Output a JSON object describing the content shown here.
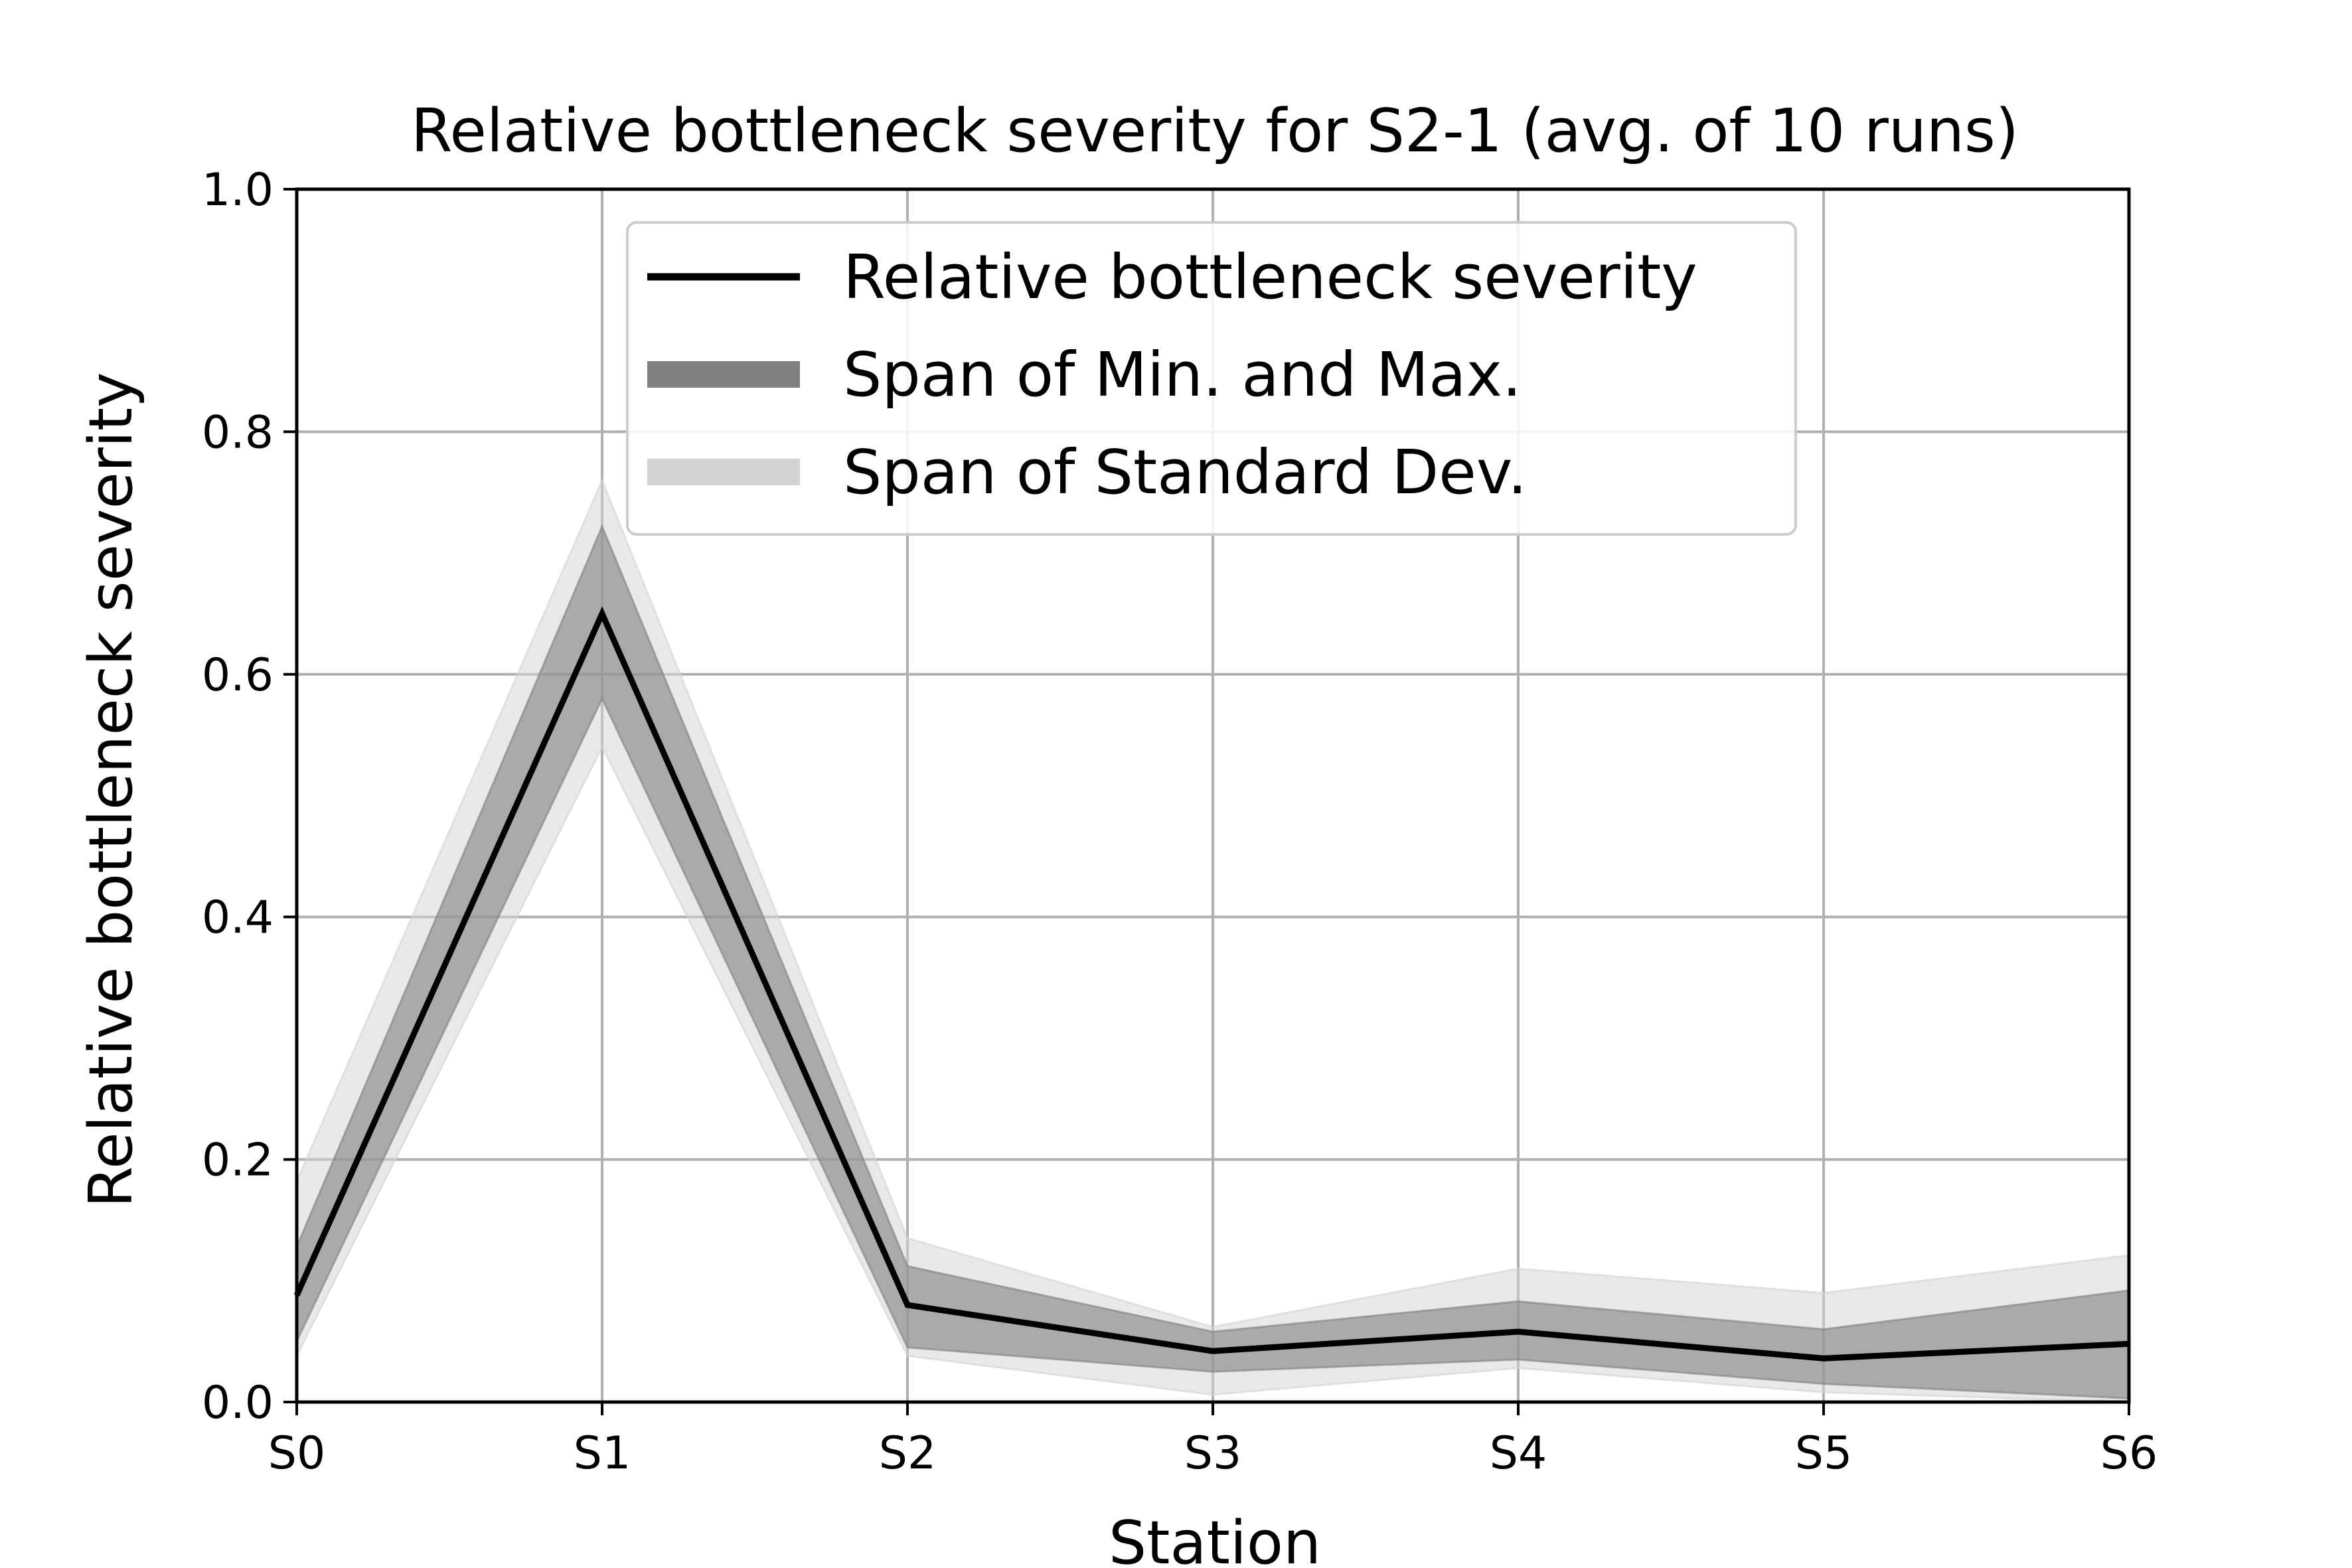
{
  "chart_data": {
    "type": "line",
    "title": "Relative bottleneck severity for S2-1 (avg. of 10 runs)",
    "xlabel": "Station",
    "ylabel": "Relative bottleneck severity",
    "categories": [
      "S0",
      "S1",
      "S2",
      "S3",
      "S4",
      "S5",
      "S6"
    ],
    "ylim": [
      0,
      1.0
    ],
    "yticks": [
      "0.0",
      "0.2",
      "0.4",
      "0.6",
      "0.8",
      "1.0"
    ],
    "ytick_values": [
      0.0,
      0.2,
      0.4,
      0.6,
      0.8,
      1.0
    ],
    "grid": true,
    "legend_position": "top-center",
    "series": [
      {
        "name": "Relative bottleneck severity",
        "kind": "line",
        "color": "#000000",
        "values": [
          0.088,
          0.65,
          0.08,
          0.042,
          0.058,
          0.036,
          0.048
        ]
      },
      {
        "name": "Span of Min. and Max.",
        "kind": "band",
        "color": "#808080",
        "lower": [
          0.05,
          0.58,
          0.045,
          0.025,
          0.035,
          0.015,
          0.003
        ],
        "upper": [
          0.128,
          0.722,
          0.112,
          0.058,
          0.083,
          0.06,
          0.092
        ]
      },
      {
        "name": "Span of Standard Dev.",
        "kind": "band",
        "color": "#d3d3d3",
        "lower": [
          0.038,
          0.54,
          0.038,
          0.006,
          0.028,
          0.008,
          0.0
        ],
        "upper": [
          0.182,
          0.76,
          0.135,
          0.062,
          0.11,
          0.09,
          0.121
        ]
      }
    ]
  }
}
